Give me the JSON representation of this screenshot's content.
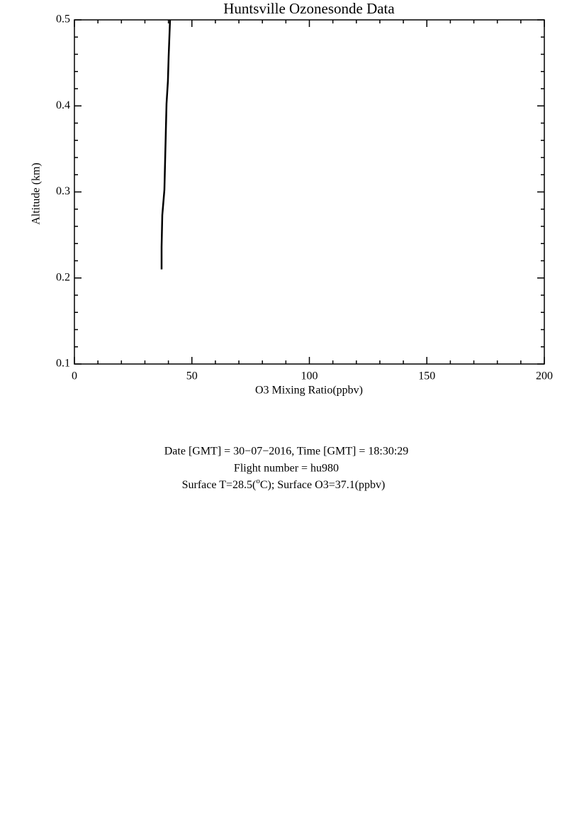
{
  "chart_data": {
    "type": "line",
    "title": "Huntsville Ozonesonde Data",
    "x_label": "O3 Mixing Ratio(ppbv)",
    "y_label": "Altitude (km)",
    "x": [
      37.1,
      37.1,
      37.4,
      38.3,
      38.6,
      38.9,
      39.2,
      39.8,
      40.1,
      40.7
    ],
    "series": [
      {
        "color": "#000000",
        "values": [
          0.21,
          0.236,
          0.273,
          0.3025,
          0.336,
          0.369,
          0.4025,
          0.429,
          0.457,
          0.5
        ]
      }
    ],
    "xlim": [
      0,
      200
    ],
    "xticks": [
      0,
      50,
      100,
      150,
      200
    ],
    "ylim": [
      0.1,
      0.5
    ],
    "yticks": [
      0.1,
      0.2,
      0.3,
      0.4,
      0.5
    ],
    "grid": false
  },
  "footer": {
    "line1": "Date [GMT] = 30−07−2016,  Time [GMT] = 18:30:29",
    "line2": "Flight number = hu980",
    "line3": [
      "Surface T=28.5(",
      "o",
      "C); Surface O3=37.1(ppbv)"
    ]
  }
}
